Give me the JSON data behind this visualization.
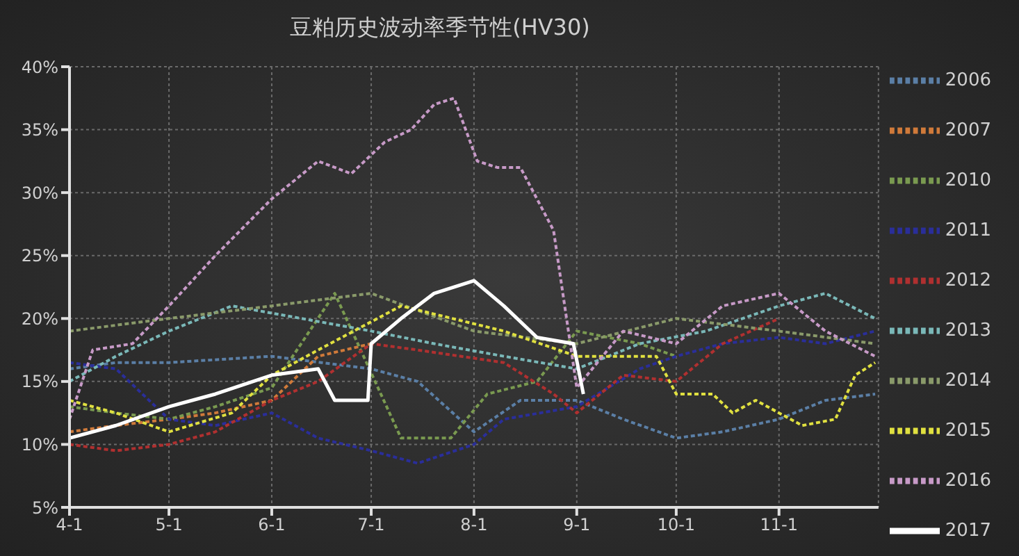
{
  "chart_data": {
    "type": "line",
    "title": "豆粕历史波动率季节性(HV30)",
    "xlim": [
      "--04-01",
      "--12-01"
    ],
    "xticks": [
      {
        "value": "--04-01",
        "label": "4-1"
      },
      {
        "value": "--05-01",
        "label": "5-1"
      },
      {
        "value": "--06-01",
        "label": "6-1"
      },
      {
        "value": "--07-01",
        "label": "7-1"
      },
      {
        "value": "--08-01",
        "label": "8-1"
      },
      {
        "value": "--09-01",
        "label": "9-1"
      },
      {
        "value": "--10-01",
        "label": "10-1"
      },
      {
        "value": "--11-01",
        "label": "11-1"
      }
    ],
    "ylim": [
      5,
      40
    ],
    "yticks": [
      {
        "value": 5,
        "label": "5%"
      },
      {
        "value": 10,
        "label": "10%"
      },
      {
        "value": 15,
        "label": "15%"
      },
      {
        "value": 20,
        "label": "20%"
      },
      {
        "value": 25,
        "label": "25%"
      },
      {
        "value": 30,
        "label": "30%"
      },
      {
        "value": 35,
        "label": "35%"
      },
      {
        "value": 40,
        "label": "40%"
      }
    ],
    "grid": true,
    "legend": "right",
    "marker": "none",
    "line_style": "dashed",
    "series": [
      {
        "name": "2006",
        "color": "#5b7fa6",
        "x": [
          "--04-01",
          "--04-15",
          "--05-01",
          "--06-01",
          "--07-01",
          "--07-15",
          "--08-01",
          "--08-15",
          "--09-01",
          "--09-15",
          "--10-01",
          "--10-15",
          "--11-01",
          "--11-15",
          "--11-30"
        ],
        "values": [
          16,
          16.5,
          16.5,
          17,
          16,
          15,
          11,
          13.5,
          13.5,
          12,
          10.5,
          11,
          12,
          13.5,
          14
        ]
      },
      {
        "name": "2007",
        "color": "#d07a3a",
        "x": [
          "--04-01",
          "--04-15",
          "--05-01",
          "--05-15",
          "--06-01",
          "--06-15",
          "--07-01"
        ],
        "values": [
          11,
          11.5,
          12,
          12.5,
          13.5,
          17,
          18
        ]
      },
      {
        "name": "2010",
        "color": "#7a9a50",
        "x": [
          "--04-01",
          "--04-15",
          "--05-01",
          "--05-15",
          "--06-01",
          "--06-20",
          "--07-10",
          "--07-25",
          "--08-05",
          "--08-20",
          "--09-01",
          "--09-20",
          "--10-01"
        ],
        "values": [
          13,
          12.5,
          12,
          13,
          14.5,
          22,
          10.5,
          10.5,
          14,
          15,
          19,
          18,
          17
        ]
      },
      {
        "name": "2011",
        "color": "#2a2e9a",
        "x": [
          "--04-01",
          "--04-15",
          "--05-01",
          "--05-15",
          "--06-01",
          "--06-15",
          "--07-01",
          "--07-15",
          "--08-01",
          "--08-10",
          "--09-01",
          "--09-20",
          "--10-01",
          "--10-15",
          "--11-01",
          "--11-15",
          "--11-30"
        ],
        "values": [
          16.5,
          16,
          12,
          11.5,
          12.5,
          10.5,
          9.5,
          8.5,
          10,
          12,
          13,
          16,
          17,
          18,
          18.5,
          18,
          19
        ]
      },
      {
        "name": "2012",
        "color": "#b03030",
        "x": [
          "--04-01",
          "--04-15",
          "--05-01",
          "--05-15",
          "--06-01",
          "--06-15",
          "--07-01",
          "--07-15",
          "--08-10",
          "--08-25",
          "--09-01",
          "--09-15",
          "--10-01",
          "--10-15",
          "--11-01"
        ],
        "values": [
          10,
          9.5,
          10,
          11,
          13.5,
          15,
          18,
          17.5,
          16.5,
          14,
          12.5,
          15.5,
          15,
          18,
          20
        ]
      },
      {
        "name": "2013",
        "color": "#7ab8b8",
        "x": [
          "--04-01",
          "--04-15",
          "--05-01",
          "--05-20",
          "--06-10",
          "--07-01",
          "--07-20",
          "--08-10",
          "--09-01",
          "--09-20",
          "--10-10",
          "--11-01",
          "--11-15",
          "--11-30"
        ],
        "values": [
          15,
          17,
          19,
          21,
          20,
          19,
          18,
          17,
          16,
          18,
          19,
          21,
          22,
          20
        ]
      },
      {
        "name": "2014",
        "color": "#8a9a6a",
        "x": [
          "--04-01",
          "--05-01",
          "--06-01",
          "--07-01",
          "--08-01",
          "--09-01",
          "--10-01",
          "--11-01",
          "--11-30"
        ],
        "values": [
          19,
          20,
          21,
          22,
          19,
          18,
          20,
          19,
          18
        ]
      },
      {
        "name": "2015",
        "color": "#e0e040",
        "x": [
          "--04-01",
          "--04-15",
          "--05-01",
          "--05-20",
          "--06-01",
          "--06-15",
          "--07-10",
          "--08-10",
          "--09-01",
          "--09-25",
          "--10-01",
          "--10-12",
          "--10-18",
          "--10-25",
          "--11-01",
          "--11-08",
          "--11-18",
          "--11-24",
          "--11-30"
        ],
        "values": [
          13.5,
          12.5,
          11,
          12.5,
          15.5,
          17.5,
          21,
          19,
          17,
          17,
          14,
          14,
          12.5,
          13.5,
          12.5,
          11.5,
          12,
          15.5,
          16.5
        ]
      },
      {
        "name": "2016",
        "color": "#c79ac7",
        "x": [
          "--04-01",
          "--04-08",
          "--04-20",
          "--05-01",
          "--05-15",
          "--06-01",
          "--06-15",
          "--06-25",
          "--07-05",
          "--07-13",
          "--07-20",
          "--07-26",
          "--08-02",
          "--08-08",
          "--08-15",
          "--08-25",
          "--09-01",
          "--09-15",
          "--10-01",
          "--10-15",
          "--11-01",
          "--11-15",
          "--11-30"
        ],
        "values": [
          12,
          17.5,
          18,
          21,
          25,
          29.5,
          32.5,
          31.5,
          34,
          35,
          37,
          37.5,
          32.5,
          32,
          32,
          27,
          14.5,
          19,
          18,
          21,
          22,
          19,
          17
        ]
      },
      {
        "name": "2017",
        "color": "#ffffff",
        "line_style": "solid",
        "x": [
          "--04-01",
          "--04-15",
          "--05-01",
          "--05-15",
          "--06-01",
          "--06-15",
          "--06-20",
          "--06-30",
          "--07-01",
          "--07-10",
          "--07-20",
          "--08-01",
          "--08-10",
          "--08-20",
          "--08-31",
          "--09-03"
        ],
        "values": [
          10.5,
          11.5,
          13,
          14,
          15.5,
          16,
          13.5,
          13.5,
          18,
          20,
          22,
          23,
          21,
          18.5,
          18,
          14
        ]
      }
    ]
  }
}
